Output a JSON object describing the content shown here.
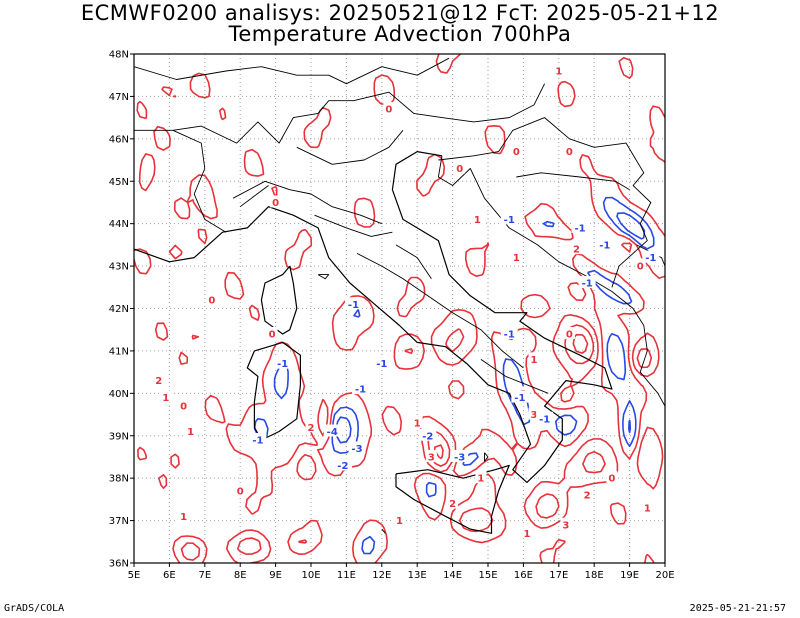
{
  "title": {
    "line1": "ECMWF0200 analisys: 20250521@12 FcT: 2025-05-21+12",
    "line2": "Temperature Advection 700hPa"
  },
  "map": {
    "lon_range": [
      5,
      20
    ],
    "lat_range": [
      36,
      48
    ],
    "lon_ticks": [
      "5E",
      "6E",
      "7E",
      "8E",
      "9E",
      "10E",
      "11E",
      "12E",
      "13E",
      "14E",
      "15E",
      "16E",
      "17E",
      "18E",
      "19E",
      "20E"
    ],
    "lat_ticks": [
      "36N",
      "37N",
      "38N",
      "39N",
      "40N",
      "41N",
      "42N",
      "43N",
      "44N",
      "45N",
      "46N",
      "47N",
      "48N"
    ],
    "grid": "dotted",
    "colors": {
      "positive": "#e8323a",
      "negative": "#2848e8",
      "coast": "#000000",
      "grid": "#a0a0a0"
    }
  },
  "contour_labels": {
    "positive": [
      {
        "text": "2",
        "lon": 5.7,
        "lat": 40.3
      },
      {
        "text": "1",
        "lon": 5.9,
        "lat": 39.9
      },
      {
        "text": "0",
        "lon": 6.4,
        "lat": 39.7
      },
      {
        "text": "1",
        "lon": 6.6,
        "lat": 39.1
      },
      {
        "text": "0",
        "lon": 8.0,
        "lat": 37.7
      },
      {
        "text": "1",
        "lon": 6.4,
        "lat": 37.1
      },
      {
        "text": "0",
        "lon": 7.2,
        "lat": 42.2
      },
      {
        "text": "0",
        "lon": 9.0,
        "lat": 44.5
      },
      {
        "text": "0",
        "lon": 12.2,
        "lat": 46.7
      },
      {
        "text": "0",
        "lon": 14.2,
        "lat": 45.3
      },
      {
        "text": "0",
        "lon": 15.8,
        "lat": 45.7
      },
      {
        "text": "1",
        "lon": 17.0,
        "lat": 47.6
      },
      {
        "text": "0",
        "lon": 17.3,
        "lat": 45.7
      },
      {
        "text": "1",
        "lon": 14.7,
        "lat": 44.1
      },
      {
        "text": "1",
        "lon": 15.8,
        "lat": 43.2
      },
      {
        "text": "2",
        "lon": 17.5,
        "lat": 43.4
      },
      {
        "text": "0",
        "lon": 17.3,
        "lat": 41.4
      },
      {
        "text": "1",
        "lon": 16.3,
        "lat": 40.8
      },
      {
        "text": "2",
        "lon": 16.0,
        "lat": 40.0
      },
      {
        "text": "3",
        "lon": 16.3,
        "lat": 39.5
      },
      {
        "text": "1",
        "lon": 13.0,
        "lat": 39.3
      },
      {
        "text": "3",
        "lon": 13.4,
        "lat": 38.5
      },
      {
        "text": "2",
        "lon": 10.0,
        "lat": 39.2
      },
      {
        "text": "1",
        "lon": 11.0,
        "lat": 38.3
      },
      {
        "text": "1",
        "lon": 12.5,
        "lat": 37.0
      },
      {
        "text": "2",
        "lon": 14.0,
        "lat": 37.4
      },
      {
        "text": "1",
        "lon": 16.1,
        "lat": 36.7
      },
      {
        "text": "3",
        "lon": 17.2,
        "lat": 36.9
      },
      {
        "text": "2",
        "lon": 17.8,
        "lat": 37.6
      },
      {
        "text": "0",
        "lon": 18.5,
        "lat": 38.0
      },
      {
        "text": "1",
        "lon": 19.5,
        "lat": 37.3
      },
      {
        "text": "0",
        "lon": 19.3,
        "lat": 43.0
      },
      {
        "text": "0",
        "lon": 8.9,
        "lat": 41.4
      },
      {
        "text": "1",
        "lon": 14.8,
        "lat": 38.0
      }
    ],
    "negative": [
      {
        "text": "-1",
        "lon": 15.6,
        "lat": 44.1
      },
      {
        "text": "-1",
        "lon": 17.6,
        "lat": 43.9
      },
      {
        "text": "-1",
        "lon": 18.3,
        "lat": 43.5
      },
      {
        "text": "-1",
        "lon": 19.6,
        "lat": 43.2
      },
      {
        "text": "-1",
        "lon": 17.8,
        "lat": 42.6
      },
      {
        "text": "-1",
        "lon": 11.2,
        "lat": 42.1
      },
      {
        "text": "-1",
        "lon": 12.0,
        "lat": 40.7
      },
      {
        "text": "-1",
        "lon": 9.2,
        "lat": 40.7
      },
      {
        "text": "-1",
        "lon": 11.4,
        "lat": 40.1
      },
      {
        "text": "-3",
        "lon": 11.3,
        "lat": 38.7
      },
      {
        "text": "-4",
        "lon": 10.6,
        "lat": 39.1
      },
      {
        "text": "-2",
        "lon": 10.9,
        "lat": 38.3
      },
      {
        "text": "-2",
        "lon": 13.3,
        "lat": 39.0
      },
      {
        "text": "-3",
        "lon": 14.2,
        "lat": 38.5
      },
      {
        "text": "-1",
        "lon": 15.6,
        "lat": 41.4
      },
      {
        "text": "-1",
        "lon": 15.9,
        "lat": 39.9
      },
      {
        "text": "-1",
        "lon": 8.5,
        "lat": 38.9
      },
      {
        "text": "-1",
        "lon": 16.6,
        "lat": 39.4
      }
    ]
  },
  "footer": {
    "left": "GrADS/COLA",
    "right": "2025-05-21-21:57"
  }
}
